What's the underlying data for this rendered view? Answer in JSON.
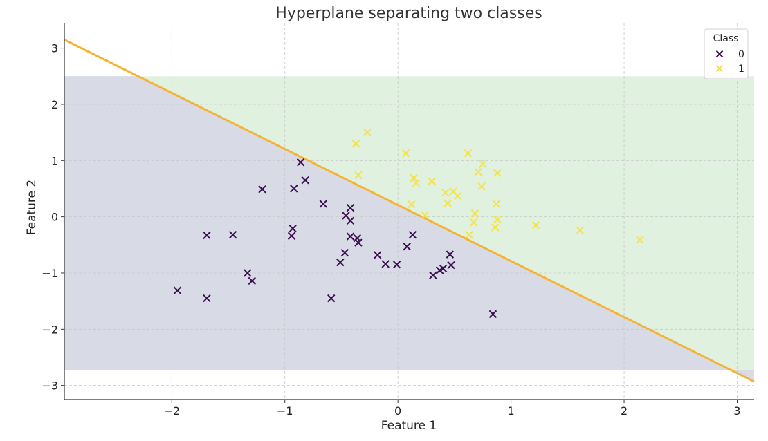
{
  "chart_data": {
    "type": "scatter",
    "title": "Hyperplane separating two classes",
    "xlabel": "Feature 1",
    "ylabel": "Feature 2",
    "xlim": [
      -2.95,
      3.15
    ],
    "ylim": [
      -3.25,
      3.45
    ],
    "xticks": [
      -2,
      -1,
      0,
      1,
      2,
      3
    ],
    "yticks": [
      -3,
      -2,
      -1,
      0,
      1,
      2,
      3
    ],
    "xtick_labels": [
      "−2",
      "−1",
      "0",
      "1",
      "2",
      "3"
    ],
    "ytick_labels": [
      "−3",
      "−2",
      "−1",
      "0",
      "1",
      "2",
      "3"
    ],
    "grid": true,
    "legend": {
      "title": "Class",
      "placement": "top-right"
    },
    "decision_region_bounds": {
      "x": [
        -2.95,
        3.15
      ],
      "y": [
        -2.73,
        2.5
      ]
    },
    "hyperplane": {
      "x": [
        -2.95,
        3.15
      ],
      "y": [
        3.15,
        -2.93
      ],
      "color": "#F5B335"
    },
    "region_colors": {
      "class_0": "#D8DBE6",
      "class_1": "#E1F1E0"
    },
    "series": [
      {
        "name": "0",
        "color": "#3B0F4F",
        "points": [
          [
            -1.95,
            -1.31
          ],
          [
            -1.69,
            -0.33
          ],
          [
            -1.69,
            -1.45
          ],
          [
            -1.46,
            -0.32
          ],
          [
            -1.33,
            -1.0
          ],
          [
            -1.29,
            -1.14
          ],
          [
            -1.2,
            0.49
          ],
          [
            -0.94,
            -0.34
          ],
          [
            -0.93,
            -0.21
          ],
          [
            -0.92,
            0.5
          ],
          [
            -0.86,
            0.97
          ],
          [
            -0.82,
            0.65
          ],
          [
            -0.66,
            0.23
          ],
          [
            -0.59,
            -1.45
          ],
          [
            -0.51,
            -0.81
          ],
          [
            -0.47,
            -0.64
          ],
          [
            -0.46,
            0.02
          ],
          [
            -0.42,
            0.16
          ],
          [
            -0.42,
            -0.07
          ],
          [
            -0.42,
            -0.35
          ],
          [
            -0.36,
            -0.38
          ],
          [
            -0.35,
            -0.46
          ],
          [
            -0.18,
            -0.68
          ],
          [
            -0.11,
            -0.84
          ],
          [
            -0.01,
            -0.85
          ],
          [
            0.08,
            -0.53
          ],
          [
            0.13,
            -0.32
          ],
          [
            0.31,
            -1.04
          ],
          [
            0.37,
            -0.95
          ],
          [
            0.4,
            -0.92
          ],
          [
            0.46,
            -0.67
          ],
          [
            0.47,
            -0.86
          ],
          [
            0.84,
            -1.73
          ]
        ]
      },
      {
        "name": "1",
        "color": "#F2E34B",
        "points": [
          [
            -0.37,
            1.3
          ],
          [
            -0.35,
            0.74
          ],
          [
            -0.27,
            1.5
          ],
          [
            0.07,
            1.13
          ],
          [
            0.12,
            0.22
          ],
          [
            0.14,
            0.69
          ],
          [
            0.16,
            0.6
          ],
          [
            0.24,
            0.03
          ],
          [
            0.3,
            0.63
          ],
          [
            0.42,
            0.43
          ],
          [
            0.44,
            0.24
          ],
          [
            0.49,
            0.45
          ],
          [
            0.53,
            0.37
          ],
          [
            0.62,
            1.13
          ],
          [
            0.63,
            -0.32
          ],
          [
            0.67,
            -0.1
          ],
          [
            0.68,
            0.06
          ],
          [
            0.71,
            0.8
          ],
          [
            0.74,
            0.54
          ],
          [
            0.75,
            0.94
          ],
          [
            0.86,
            -0.19
          ],
          [
            0.87,
            0.23
          ],
          [
            0.88,
            -0.05
          ],
          [
            0.88,
            0.78
          ],
          [
            1.22,
            -0.15
          ],
          [
            1.61,
            -0.24
          ],
          [
            2.14,
            -0.41
          ]
        ]
      }
    ]
  }
}
